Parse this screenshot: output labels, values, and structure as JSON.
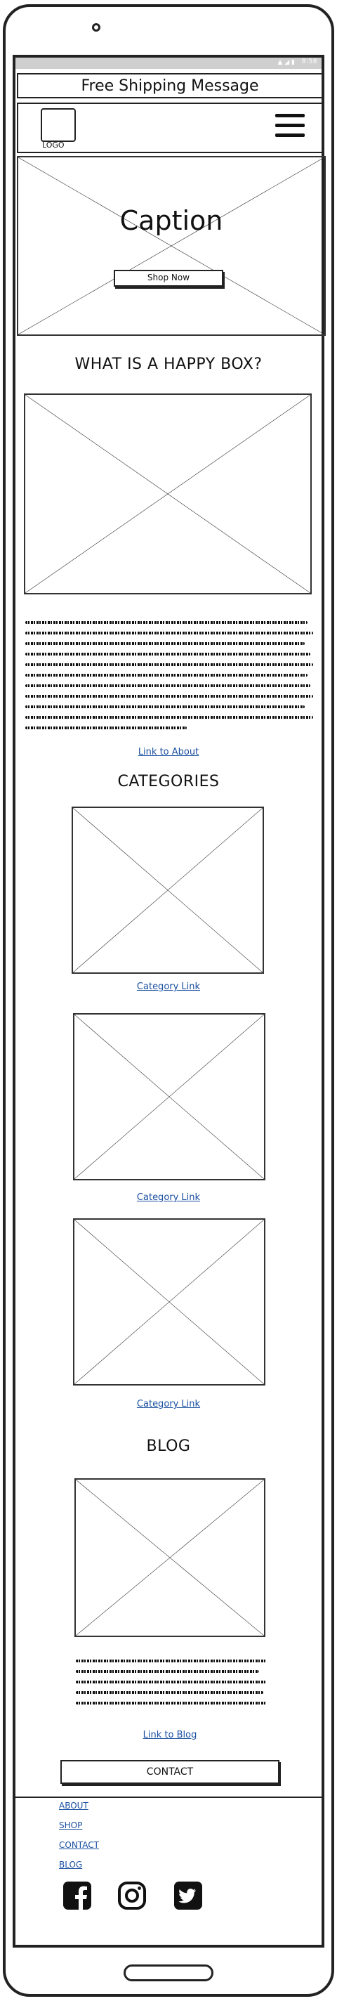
{
  "status_bar": {
    "time": "8:58",
    "icons": "wifi-icon signal-icon battery-icon"
  },
  "shipping": {
    "message": "Free Shipping Message"
  },
  "header": {
    "logo_label": "LOGO",
    "menu_icon": "hamburger-menu-icon"
  },
  "hero": {
    "caption": "Caption",
    "cta_label": "Shop Now"
  },
  "about": {
    "heading": "WHAT IS A HAPPY BOX?",
    "link_label": "Link to About"
  },
  "categories": {
    "heading": "CATEGORIES",
    "items": [
      {
        "link_label": "Category Link"
      },
      {
        "link_label": "Category Link"
      },
      {
        "link_label": "Category Link"
      }
    ]
  },
  "blog": {
    "heading": "BLOG",
    "link_label": "Link to Blog"
  },
  "contact": {
    "button_label": "CONTACT"
  },
  "footer": {
    "links": [
      {
        "label": "ABOUT"
      },
      {
        "label": "SHOP"
      },
      {
        "label": "CONTACT"
      },
      {
        "label": "BLOG"
      }
    ],
    "social_icons": [
      "facebook-icon",
      "instagram-icon",
      "twitter-icon"
    ]
  }
}
